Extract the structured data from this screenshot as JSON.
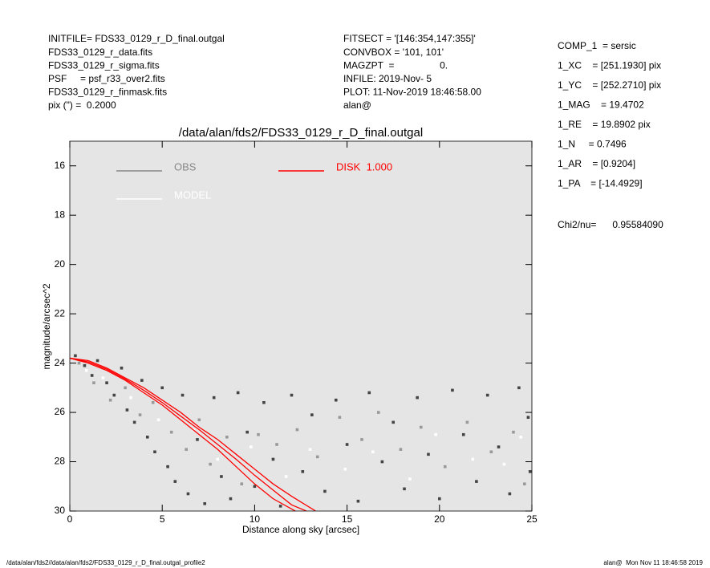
{
  "chart_data": {
    "type": "scatter",
    "title": "/data/alan/fds2/FDS33_0129_r_D_final.outgal",
    "xlabel": "Distance along sky [arcsec]",
    "ylabel": "magnitude/arcsec^2",
    "xlim": [
      0,
      25
    ],
    "ylim": [
      30,
      15
    ],
    "xticks": [
      0,
      5,
      10,
      15,
      20,
      25
    ],
    "yticks": [
      16,
      18,
      20,
      22,
      24,
      26,
      28,
      30
    ],
    "background": "#e5e5e5",
    "header_left": [
      "INITFILE= FDS33_0129_r_D_final.outgal",
      "FDS33_0129_r_data.fits",
      "FDS33_0129_r_sigma.fits",
      "PSF     = psf_r33_over2.fits",
      "FDS33_0129_r_finmask.fits",
      "pix (\") =  0.2000"
    ],
    "header_mid": [
      "FITSECT = '[146:354,147:355]'",
      "CONVBOX = '101, 101'",
      "MAGZPT  =                 0.",
      "INFILE: 2019-Nov- 5",
      "PLOT: 11-Nov-2019 18:46:58.00",
      "alan@"
    ],
    "params": [
      "COMP_1  = sersic",
      "1_XC    = [251.1930] pix",
      "1_YC    = [252.2710] pix",
      "1_MAG    = 19.4702",
      "1_RE    = 19.8902 pix",
      "1_N     = 0.7496",
      "1_AR    = [0.9204]",
      "1_PA    = [-14.4929]"
    ],
    "chi2": "Chi2/nu=      0.95584090",
    "footer_left": "/data/alan/fds2//data/alan/fds2/FDS33_0129_r_D_final.outgal_profile2",
    "footer_right": "alan@  Mon Nov 11 18:46:58 2019",
    "legend": [
      {
        "label": "OBS",
        "color": "#888888"
      },
      {
        "label": "MODEL",
        "color": "#ffffff"
      },
      {
        "label": "DISK  1.000",
        "color": "#ff0000"
      }
    ],
    "series": [
      {
        "mode": "points",
        "color": "#444444",
        "x": [
          0.3,
          0.8,
          1.2,
          1.5,
          2.0,
          2.4,
          2.8,
          3.1,
          3.5,
          3.9,
          4.2,
          4.6,
          5.0,
          5.3,
          5.7,
          6.1,
          6.4,
          6.9,
          7.3,
          7.8,
          8.2,
          8.7,
          9.1,
          9.6,
          10.0,
          10.5,
          11.0,
          11.4,
          12.0,
          12.6,
          13.1,
          13.8,
          14.4,
          15.0,
          15.6,
          16.2,
          16.9,
          17.5,
          18.1,
          18.8,
          19.4,
          20.0,
          20.7,
          21.3,
          22.0,
          22.6,
          23.2,
          23.8,
          24.3,
          24.8,
          24.9
        ],
        "y": [
          23.7,
          24.1,
          24.5,
          23.9,
          24.8,
          25.3,
          24.2,
          25.9,
          26.4,
          24.7,
          27.0,
          27.6,
          25.0,
          28.2,
          28.8,
          25.3,
          29.3,
          27.1,
          29.7,
          25.4,
          28.6,
          29.5,
          25.2,
          26.8,
          29.0,
          25.6,
          27.9,
          29.8,
          25.3,
          28.4,
          26.1,
          29.2,
          25.5,
          27.3,
          29.6,
          25.2,
          28.0,
          26.4,
          29.1,
          25.4,
          27.7,
          29.5,
          25.1,
          26.9,
          28.8,
          25.3,
          27.4,
          29.3,
          25.0,
          26.2,
          28.4
        ]
      },
      {
        "mode": "points",
        "color": "#999999",
        "x": [
          0.5,
          1.3,
          2.2,
          3.0,
          3.8,
          4.5,
          5.5,
          6.3,
          7.0,
          7.6,
          8.5,
          9.3,
          10.2,
          11.2,
          12.3,
          13.4,
          14.6,
          15.8,
          16.7,
          17.9,
          19.0,
          20.3,
          21.5,
          22.8,
          24.0,
          24.6
        ],
        "y": [
          24.0,
          24.8,
          25.5,
          25.0,
          26.1,
          25.6,
          26.8,
          27.5,
          26.3,
          28.1,
          27.0,
          28.9,
          26.9,
          27.3,
          26.7,
          27.8,
          26.2,
          27.1,
          26.0,
          27.5,
          26.6,
          28.2,
          26.4,
          27.6,
          26.8,
          28.9
        ]
      },
      {
        "mode": "points",
        "color": "#ffffff",
        "x": [
          0.9,
          1.8,
          3.3,
          4.8,
          6.7,
          8.0,
          9.8,
          11.7,
          13.0,
          14.9,
          16.4,
          18.4,
          19.8,
          21.8,
          23.5,
          24.4
        ],
        "y": [
          24.3,
          24.6,
          25.4,
          26.3,
          26.7,
          27.9,
          27.4,
          28.6,
          27.5,
          28.3,
          27.6,
          28.7,
          26.9,
          27.9,
          28.1,
          27.0
        ]
      },
      {
        "mode": "line",
        "color": "#ff0000",
        "x": [
          0,
          1,
          2,
          3,
          4,
          5,
          6,
          7,
          8,
          9,
          10,
          11,
          12,
          12.8
        ],
        "y": [
          23.8,
          23.95,
          24.25,
          24.65,
          25.1,
          25.6,
          26.15,
          26.7,
          27.3,
          27.9,
          28.55,
          29.15,
          29.75,
          30.0
        ]
      },
      {
        "mode": "line",
        "color": "#ff0000",
        "x": [
          0,
          1,
          2,
          3,
          4,
          5,
          6,
          7,
          8,
          9,
          10,
          11,
          12,
          13.3
        ],
        "y": [
          23.8,
          23.9,
          24.2,
          24.6,
          25.0,
          25.5,
          26.0,
          26.6,
          27.1,
          27.7,
          28.3,
          28.9,
          29.4,
          30.0
        ]
      },
      {
        "mode": "line",
        "color": "#ff0000",
        "x": [
          0,
          1,
          2,
          3,
          4,
          5,
          6,
          7,
          8,
          9,
          10,
          11,
          12.2
        ],
        "y": [
          23.8,
          24.0,
          24.3,
          24.7,
          25.2,
          25.7,
          26.3,
          26.9,
          27.5,
          28.2,
          28.9,
          29.5,
          30.0
        ]
      }
    ]
  }
}
